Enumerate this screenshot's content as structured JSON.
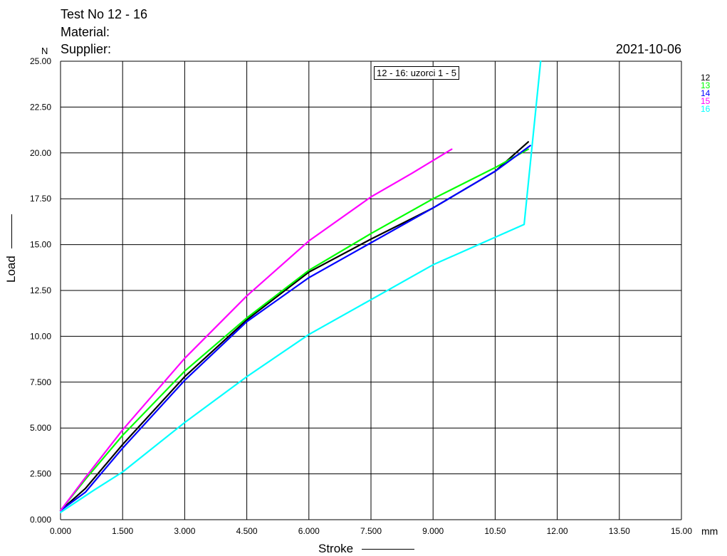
{
  "header": {
    "test_no": "Test No  12 - 16",
    "material": "Material:",
    "supplier": "Supplier:",
    "date": "2021-10-06",
    "y_unit": "N",
    "x_unit": "mm"
  },
  "chart_data": {
    "type": "line",
    "xlabel": "Stroke",
    "ylabel": "Load",
    "xlim": [
      0,
      15
    ],
    "ylim": [
      0,
      25
    ],
    "x_ticks": [
      "0.000",
      "1.500",
      "3.000",
      "4.500",
      "6.000",
      "7.500",
      "9.000",
      "10.50",
      "12.00",
      "13.50",
      "15.00"
    ],
    "y_ticks": [
      "0.000",
      "2.500",
      "5.000",
      "7.500",
      "10.00",
      "12.50",
      "15.00",
      "17.50",
      "20.00",
      "22.50",
      "25.00"
    ],
    "grid": true,
    "legend_position": "right",
    "annotation": "12 - 16: uzorci 1 - 5",
    "series": [
      {
        "name": "12",
        "color": "#000000",
        "x": [
          0.0,
          0.6,
          1.5,
          3.0,
          4.5,
          6.0,
          7.5,
          9.0,
          10.5,
          11.3
        ],
        "y": [
          0.5,
          1.7,
          4.1,
          7.8,
          10.9,
          13.5,
          15.3,
          17.0,
          19.0,
          20.6
        ]
      },
      {
        "name": "13",
        "color": "#00ff00",
        "x": [
          0.0,
          0.6,
          1.5,
          3.0,
          4.5,
          6.0,
          7.5,
          9.0,
          10.5,
          11.3
        ],
        "y": [
          0.5,
          2.2,
          4.6,
          8.1,
          11.0,
          13.6,
          15.6,
          17.5,
          19.2,
          20.2
        ]
      },
      {
        "name": "14",
        "color": "#0000ff",
        "x": [
          0.0,
          0.6,
          1.5,
          3.0,
          4.5,
          6.0,
          7.5,
          9.0,
          10.5,
          11.35
        ],
        "y": [
          0.5,
          1.5,
          3.9,
          7.6,
          10.8,
          13.2,
          15.1,
          17.0,
          19.0,
          20.4
        ]
      },
      {
        "name": "15",
        "color": "#ff00ff",
        "x": [
          0.0,
          0.6,
          1.5,
          3.0,
          4.5,
          6.0,
          7.5,
          8.5,
          9.45
        ],
        "y": [
          0.5,
          2.3,
          4.9,
          8.8,
          12.2,
          15.2,
          17.6,
          18.9,
          20.2
        ]
      },
      {
        "name": "16",
        "color": "#00ffff",
        "x": [
          0.0,
          0.8,
          1.5,
          3.0,
          4.5,
          6.0,
          7.5,
          9.0,
          10.5,
          11.2,
          11.6
        ],
        "y": [
          0.4,
          1.6,
          2.6,
          5.3,
          7.8,
          10.1,
          12.0,
          13.9,
          15.4,
          16.1,
          25.0
        ]
      }
    ]
  }
}
